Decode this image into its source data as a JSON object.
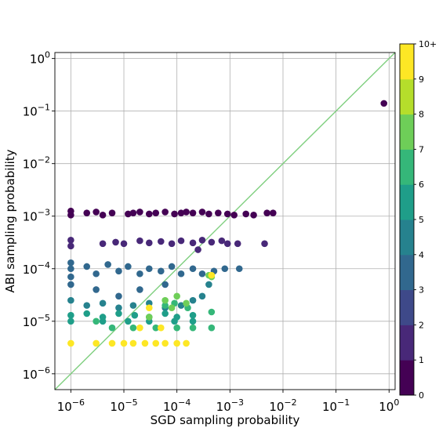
{
  "chart_data": {
    "type": "scatter",
    "title": "",
    "xlabel": "SGD sampling probability",
    "ylabel": "ABI sampling probability",
    "xscale": "log",
    "yscale": "log",
    "xlim": [
      5e-07,
      1.3
    ],
    "ylim": [
      5e-07,
      1.3
    ],
    "x_ticks": [
      {
        "value": 1e-06,
        "base": "10",
        "exp": "−6"
      },
      {
        "value": 1e-05,
        "base": "10",
        "exp": "−5"
      },
      {
        "value": 0.0001,
        "base": "10",
        "exp": "−4"
      },
      {
        "value": 0.001,
        "base": "10",
        "exp": "−3"
      },
      {
        "value": 0.01,
        "base": "10",
        "exp": "−2"
      },
      {
        "value": 0.1,
        "base": "10",
        "exp": "−1"
      },
      {
        "value": 1,
        "base": "10",
        "exp": "0"
      }
    ],
    "y_ticks": [
      {
        "value": 1e-06,
        "base": "10",
        "exp": "−6"
      },
      {
        "value": 1e-05,
        "base": "10",
        "exp": "−5"
      },
      {
        "value": 0.0001,
        "base": "10",
        "exp": "−4"
      },
      {
        "value": 0.001,
        "base": "10",
        "exp": "−3"
      },
      {
        "value": 0.01,
        "base": "10",
        "exp": "−2"
      },
      {
        "value": 0.1,
        "base": "10",
        "exp": "−1"
      },
      {
        "value": 1,
        "base": "10",
        "exp": "0"
      }
    ],
    "grid": true,
    "reference_line": {
      "type": "y=x",
      "color": "#7fcf7f"
    },
    "colorbar": {
      "colormap": "viridis",
      "colors": [
        "#440154",
        "#482878",
        "#3e4989",
        "#31688e",
        "#26828e",
        "#1f9e89",
        "#35b779",
        "#6ece58",
        "#b5de2b",
        "#fde725"
      ],
      "tick_labels": [
        "0",
        "1",
        "2",
        "3",
        "4",
        "5",
        "6",
        "7",
        "8",
        "9",
        "10+"
      ]
    },
    "series": [
      {
        "color_value": 0,
        "points": [
          [
            0.8,
            0.14
          ],
          [
            1e-06,
            0.00105
          ],
          [
            1e-06,
            0.00125
          ],
          [
            2e-06,
            0.00115
          ],
          [
            3e-06,
            0.0012
          ],
          [
            4e-06,
            0.00105
          ],
          [
            6e-06,
            0.00115
          ],
          [
            1.2e-05,
            0.0011
          ],
          [
            1.5e-05,
            0.00115
          ],
          [
            2e-05,
            0.0012
          ],
          [
            3e-05,
            0.0011
          ],
          [
            4e-05,
            0.00115
          ],
          [
            6e-05,
            0.0012
          ],
          [
            9e-05,
            0.0011
          ],
          [
            0.00012,
            0.00115
          ],
          [
            0.00015,
            0.0012
          ],
          [
            0.0002,
            0.00115
          ],
          [
            0.0003,
            0.0012
          ],
          [
            0.0004,
            0.0011
          ],
          [
            0.0006,
            0.00115
          ],
          [
            0.0009,
            0.0011
          ],
          [
            0.0012,
            0.00105
          ],
          [
            0.002,
            0.0011
          ],
          [
            0.0028,
            0.00105
          ],
          [
            0.005,
            0.00115
          ],
          [
            0.0065,
            0.00115
          ]
        ]
      },
      {
        "color_value": 1,
        "points": [
          [
            1e-06,
            0.00027
          ],
          [
            1e-06,
            0.00035
          ],
          [
            4e-06,
            0.0003
          ],
          [
            7e-06,
            0.00032
          ],
          [
            1e-05,
            0.0003
          ],
          [
            2e-05,
            0.00034
          ],
          [
            3e-05,
            0.00031
          ],
          [
            5e-05,
            0.00033
          ],
          [
            8e-05,
            0.0003
          ],
          [
            0.00012,
            0.00034
          ],
          [
            0.0002,
            0.00031
          ],
          [
            0.0003,
            0.00035
          ],
          [
            0.00045,
            0.00032
          ],
          [
            0.0007,
            0.00034
          ],
          [
            0.0009,
            0.0003
          ],
          [
            0.0014,
            0.0003
          ],
          [
            0.0045,
            0.0003
          ],
          [
            0.00025,
            0.00023
          ]
        ]
      },
      {
        "color_value": 3,
        "points": [
          [
            1e-06,
            0.00013
          ],
          [
            1e-06,
            0.0001
          ],
          [
            1e-06,
            7e-05
          ],
          [
            2e-06,
            0.00011
          ],
          [
            3e-06,
            8e-05
          ],
          [
            5e-06,
            0.00012
          ],
          [
            8e-06,
            9e-05
          ],
          [
            1.2e-05,
            0.00011
          ],
          [
            2e-05,
            8e-05
          ],
          [
            3e-05,
            0.0001
          ],
          [
            5e-05,
            9e-05
          ],
          [
            8e-05,
            0.00011
          ],
          [
            0.00012,
            8e-05
          ],
          [
            0.0002,
            0.0001
          ],
          [
            0.0003,
            8e-05
          ],
          [
            0.0005,
            9e-05
          ],
          [
            0.0008,
            0.0001
          ],
          [
            0.0015,
            0.0001
          ],
          [
            1e-06,
            5e-05
          ],
          [
            3e-06,
            4e-05
          ],
          [
            8e-06,
            3e-05
          ],
          [
            2e-05,
            4e-05
          ],
          [
            6e-05,
            5e-05
          ]
        ]
      },
      {
        "color_value": 4,
        "points": [
          [
            1e-06,
            2.5e-05
          ],
          [
            2e-06,
            2e-05
          ],
          [
            4e-06,
            2.2e-05
          ],
          [
            8e-06,
            1.8e-05
          ],
          [
            1.5e-05,
            2e-05
          ],
          [
            3e-05,
            2.2e-05
          ],
          [
            6e-05,
            1.8e-05
          ],
          [
            0.00012,
            2e-05
          ],
          [
            0.0002,
            2.5e-05
          ],
          [
            0.0003,
            3e-05
          ],
          [
            0.0004,
            5e-05
          ]
        ]
      },
      {
        "color_value": 5,
        "points": [
          [
            1e-06,
            1.3e-05
          ],
          [
            2e-06,
            1.4e-05
          ],
          [
            4e-06,
            1.2e-05
          ],
          [
            8e-06,
            1.4e-05
          ],
          [
            1.6e-05,
            1.3e-05
          ],
          [
            3e-05,
            1.2e-05
          ],
          [
            6e-05,
            1.4e-05
          ],
          [
            0.0001,
            1.2e-05
          ],
          [
            0.0002,
            1.3e-05
          ],
          [
            1e-06,
            1e-05
          ],
          [
            4e-06,
            1e-05
          ],
          [
            1.2e-05,
            1e-05
          ],
          [
            3e-05,
            1e-05
          ],
          [
            9e-05,
            1e-05
          ],
          [
            0.0002,
            1e-05
          ]
        ]
      },
      {
        "color_value": 6,
        "points": [
          [
            3e-06,
            1e-05
          ],
          [
            6e-06,
            7.5e-06
          ],
          [
            1.5e-05,
            7.5e-06
          ],
          [
            4e-05,
            7.5e-06
          ],
          [
            0.0001,
            7.5e-06
          ],
          [
            0.0002,
            7.5e-06
          ],
          [
            0.00045,
            7.5e-06
          ],
          [
            0.00045,
            1.5e-05
          ],
          [
            0.00016,
            1.8e-05
          ],
          [
            9e-05,
            2.2e-05
          ],
          [
            6e-05,
            2e-05
          ]
        ]
      },
      {
        "color_value": 7,
        "points": [
          [
            6e-05,
            2.5e-05
          ],
          [
            0.0001,
            3e-05
          ],
          [
            0.00015,
            2.2e-05
          ],
          [
            8e-05,
            1.8e-05
          ],
          [
            0.00045,
            7e-05
          ],
          [
            3e-05,
            1.2e-05
          ],
          [
            0.0004,
            7.5e-05
          ]
        ]
      },
      {
        "color_value": 9,
        "points": [
          [
            1e-06,
            3.8e-06
          ],
          [
            3e-06,
            3.8e-06
          ],
          [
            6e-06,
            3.8e-06
          ],
          [
            1e-05,
            3.8e-06
          ],
          [
            1.5e-05,
            3.8e-06
          ],
          [
            2.5e-05,
            3.8e-06
          ],
          [
            4e-05,
            3.8e-06
          ],
          [
            6e-05,
            3.8e-06
          ],
          [
            0.0001,
            3.8e-06
          ],
          [
            0.00015,
            3.8e-06
          ],
          [
            2e-05,
            7.5e-06
          ],
          [
            5e-05,
            7.5e-06
          ],
          [
            3e-05,
            1.8e-05
          ],
          [
            0.00045,
            7.5e-05
          ]
        ]
      }
    ]
  }
}
